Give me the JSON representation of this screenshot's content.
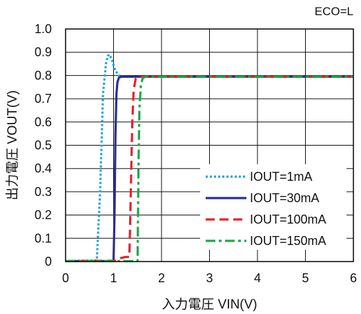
{
  "chart_data": {
    "type": "line",
    "title": "",
    "annotation": "ECO=L",
    "xlabel": "入力電圧 VIN(V)",
    "ylabel": "出力電圧 VOUT(V)",
    "xlim": [
      0,
      6
    ],
    "ylim": [
      0,
      1.0
    ],
    "xticks": [
      "0",
      "1",
      "2",
      "3",
      "4",
      "5",
      "6"
    ],
    "yticks": [
      "0",
      "0.1",
      "0.2",
      "0.3",
      "0.4",
      "0.5",
      "0.6",
      "0.7",
      "0.8",
      "0.9",
      "1.0"
    ],
    "grid": true,
    "legend_position": "lower-right",
    "series": [
      {
        "name": "IOUT=1mA",
        "color": "#1aa3e8",
        "dash": "dotted",
        "x": [
          0,
          0.65,
          0.72,
          0.78,
          0.84,
          0.88,
          0.92,
          0.97,
          1.02,
          1.1,
          1.2,
          6
        ],
        "y": [
          0.002,
          0.005,
          0.3,
          0.72,
          0.85,
          0.885,
          0.89,
          0.865,
          0.83,
          0.8,
          0.795,
          0.795
        ]
      },
      {
        "name": "IOUT=30mA",
        "color": "#2b2f8e",
        "dash": "solid",
        "x": [
          0,
          1.0,
          1.02,
          1.04,
          1.06,
          1.08,
          1.11,
          1.16,
          1.25,
          6
        ],
        "y": [
          0.002,
          0.002,
          0.2,
          0.55,
          0.72,
          0.77,
          0.79,
          0.795,
          0.795,
          0.795
        ]
      },
      {
        "name": "IOUT=100mA",
        "color": "#e8202a",
        "dash": "dashed",
        "x": [
          0,
          1.05,
          1.15,
          1.25,
          1.33,
          1.36,
          1.39,
          1.42,
          1.46,
          1.52,
          6
        ],
        "y": [
          0.002,
          0.004,
          0.015,
          0.02,
          0.02,
          0.3,
          0.6,
          0.74,
          0.785,
          0.795,
          0.795
        ]
      },
      {
        "name": "IOUT=150mA",
        "color": "#1fa64a",
        "dash": "dashdot",
        "x": [
          0,
          1.5,
          1.52,
          1.54,
          1.57,
          1.61,
          1.68,
          6
        ],
        "y": [
          0.002,
          0.002,
          0.4,
          0.66,
          0.76,
          0.79,
          0.795,
          0.795
        ]
      }
    ]
  }
}
